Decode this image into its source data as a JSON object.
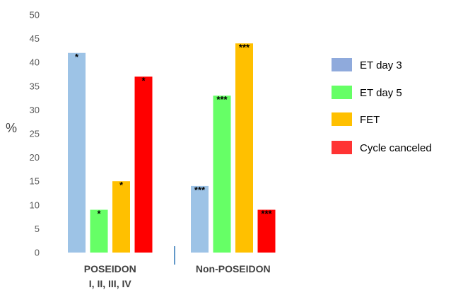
{
  "chart_data": {
    "type": "bar",
    "title": "",
    "xlabel": "",
    "ylabel": "%",
    "ylim": [
      0,
      50
    ],
    "yticks": [
      0,
      5,
      10,
      15,
      20,
      25,
      30,
      35,
      40,
      45,
      50
    ],
    "grid": false,
    "legend_position": "right",
    "categories": [
      {
        "line1": "POSEIDON",
        "line2": "I, II, III, IV"
      },
      {
        "line1": "Non-POSEIDON",
        "line2": ""
      }
    ],
    "series": [
      {
        "name": "ET day 3",
        "color": "#9dc3e6",
        "legend_color": "#8faadc",
        "values": [
          42,
          14
        ],
        "annotations": [
          "*",
          "***"
        ]
      },
      {
        "name": "ET day 5",
        "color": "#66ff66",
        "legend_color": "#66ff66",
        "values": [
          9,
          33
        ],
        "annotations": [
          "*",
          "***"
        ]
      },
      {
        "name": "FET",
        "color": "#ffc000",
        "legend_color": "#ffc000",
        "values": [
          15,
          44
        ],
        "annotations": [
          "*",
          "***"
        ]
      },
      {
        "name": "Cycle canceled",
        "color": "#ff0000",
        "legend_color": "#ff3333",
        "values": [
          37,
          9
        ],
        "annotations": [
          "*",
          "***"
        ]
      }
    ]
  }
}
